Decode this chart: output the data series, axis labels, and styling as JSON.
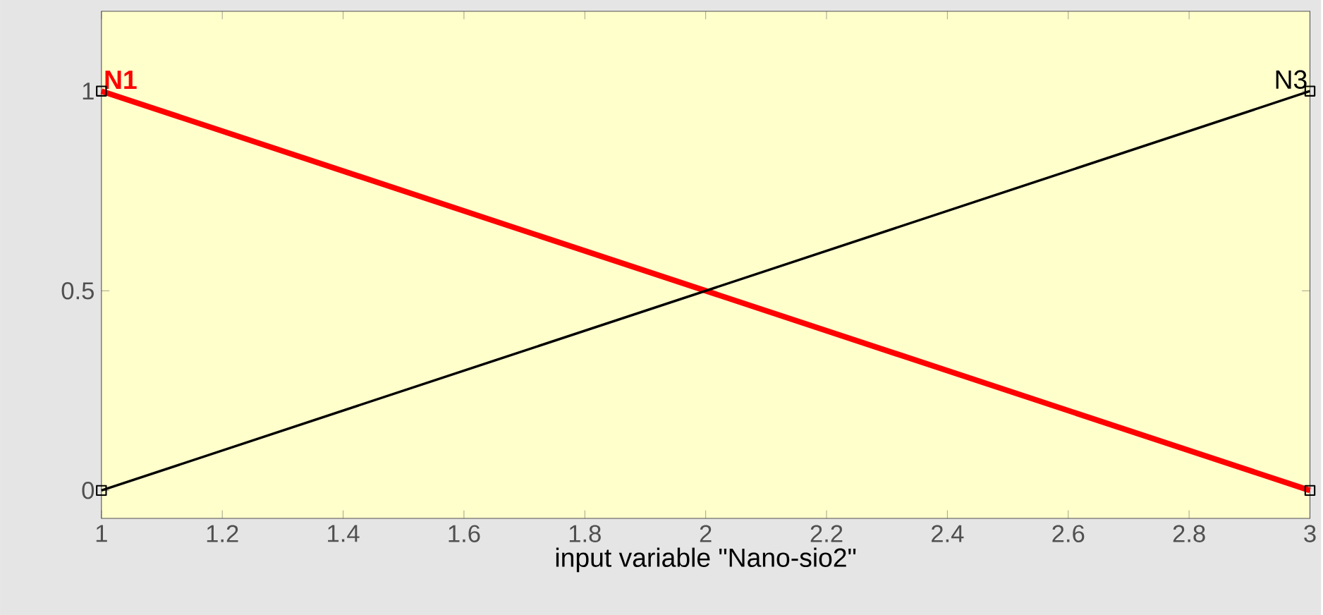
{
  "chart_data": {
    "type": "line",
    "xlabel": "input variable \"Nano-sio2\"",
    "x": [
      1,
      3
    ],
    "series": [
      {
        "name": "N1",
        "color": "#ff0000",
        "values": [
          1,
          0
        ]
      },
      {
        "name": "N3",
        "color": "#000000",
        "values": [
          0,
          1
        ]
      }
    ],
    "xlim": [
      1,
      3
    ],
    "ylim": [
      -0.07,
      1.2
    ],
    "xticks": [
      1,
      1.2,
      1.4,
      1.6,
      1.8,
      2,
      2.2,
      2.4,
      2.6,
      2.8,
      3
    ],
    "yticks": [
      0,
      0.5,
      1
    ],
    "grid": false,
    "marker": "square",
    "line_style": "solid"
  }
}
